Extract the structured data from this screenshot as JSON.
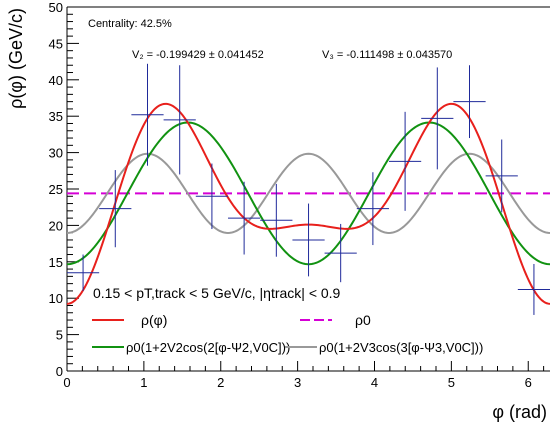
{
  "chart_data": {
    "type": "line",
    "xlabel": "φ (rad)",
    "ylabel": "ρ(φ) (GeV/c)",
    "xlim": [
      0,
      6.283
    ],
    "ylim": [
      0,
      50
    ],
    "grid": false,
    "x_ticks": [
      0,
      1,
      2,
      3,
      4,
      5,
      6
    ],
    "y_ticks": [
      0,
      5,
      10,
      15,
      20,
      25,
      30,
      35,
      40,
      45,
      50
    ],
    "annotations": {
      "centrality": "Centrality: 42.5%",
      "v2": "V₂ = -0.199429 ± 0.041452",
      "v3": "V₃ = -0.111498 ± 0.043570",
      "cuts": "0.15 < pT,track < 5 GeV/c, |ηtrack| < 0.9"
    },
    "legend": {
      "placement": "bottom",
      "entries": [
        {
          "label": "ρ(φ)",
          "color": "#e8201c"
        },
        {
          "label": "ρ0",
          "color": "#d500d5"
        },
        {
          "label": "ρ0(1+2V2cos(2[φ-Ψ2,V0C]))",
          "color": "#119211"
        },
        {
          "label": "ρ0(1+2V3cos(3[φ-Ψ3,V0C]))",
          "color": "#999999"
        }
      ]
    },
    "histogram": {
      "name": "data",
      "color": "#1f2a9a",
      "bin_width": 0.419,
      "x": [
        0.209,
        0.628,
        1.047,
        1.466,
        1.885,
        2.304,
        2.723,
        3.142,
        3.56,
        3.979,
        4.398,
        4.817,
        5.236,
        5.655,
        6.074
      ],
      "y": [
        13.5,
        22.3,
        35.2,
        34.5,
        24.0,
        21.0,
        20.7,
        18.0,
        16.2,
        22.3,
        28.8,
        34.7,
        37.0,
        26.8,
        11.2
      ],
      "err": [
        2.5,
        5.3,
        7.0,
        7.5,
        4.5,
        5.0,
        5.0,
        5.0,
        4.0,
        5.0,
        6.8,
        7.0,
        5.0,
        5.0,
        3.5
      ]
    },
    "model": {
      "rho0": 24.4,
      "v2": -0.199429,
      "v3": -0.111498,
      "psi2": 0.0,
      "psi3": 0.0
    },
    "colors": {
      "data": "#1f2a9a",
      "rho": "#e8201c",
      "rho0": "#d500d5",
      "v2": "#119211",
      "v3": "#999999"
    }
  }
}
